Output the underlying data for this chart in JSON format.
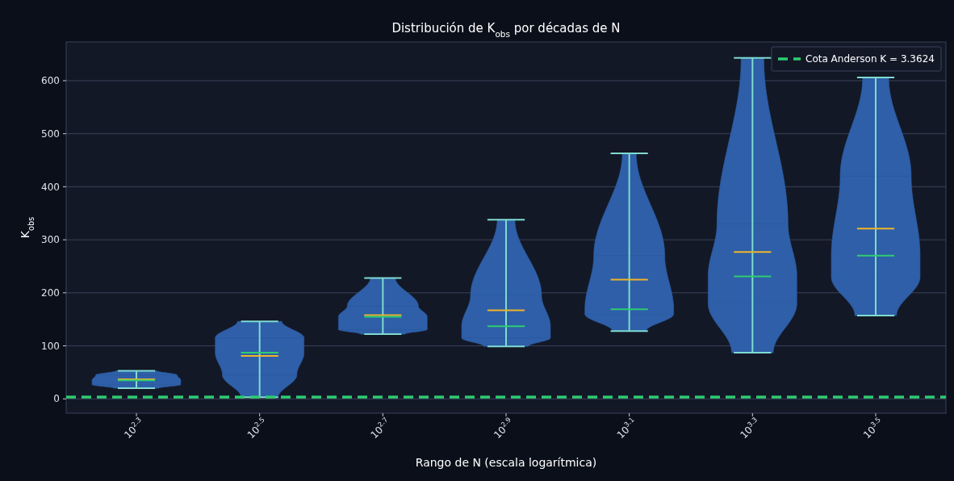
{
  "chart_data": {
    "type": "box",
    "title": "Distribución de K$_{obs}$ por décadas de N",
    "xlabel": "Rango de N (escala logarítmica)",
    "ylabel": "K$_{obs}$",
    "categories": [
      "10$^{2.3}$",
      "10$^{2.5}$",
      "10$^{2.7}$",
      "10$^{2.9}$",
      "10$^{3.1}$",
      "10$^{3.3}$",
      "10$^{3.5}$"
    ],
    "color": "#2e5fa8",
    "boxes": [
      {
        "low": 20,
        "q1": 27,
        "median": 35,
        "q3": 45,
        "high": 53,
        "mean": 37
      },
      {
        "low": 3,
        "q1": 45,
        "median": 87,
        "q3": 115,
        "high": 146,
        "mean": 81
      },
      {
        "low": 122,
        "q1": 131,
        "median": 155,
        "q3": 175,
        "high": 228,
        "mean": 158
      },
      {
        "low": 99,
        "q1": 115,
        "median": 137,
        "q3": 195,
        "high": 338,
        "mean": 167
      },
      {
        "low": 128,
        "q1": 160,
        "median": 169,
        "q3": 270,
        "high": 463,
        "mean": 225
      },
      {
        "low": 87,
        "q1": 180,
        "median": 231,
        "q3": 330,
        "high": 643,
        "mean": 277
      },
      {
        "low": 157,
        "q1": 230,
        "median": 270,
        "q3": 420,
        "high": 606,
        "mean": 321
      }
    ],
    "ylim": [
      -27,
      673
    ],
    "yticks": [
      0,
      100,
      200,
      300,
      400,
      500,
      600
    ],
    "grid": "y",
    "ref_lines": [
      {
        "axis": "y",
        "value": 3.3624,
        "label": "Cota Anderson K = 3.3624",
        "color": "#2ecc71",
        "line_style": "dashed"
      }
    ],
    "legend": "top right"
  }
}
